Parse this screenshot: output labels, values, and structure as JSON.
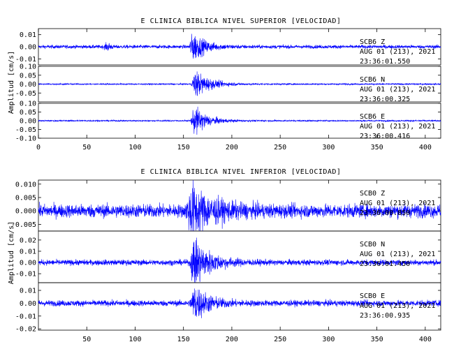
{
  "chart_data": [
    {
      "type": "line",
      "title": "E CLINICA BIBLICA NIVEL SUPERIOR [VELOCIDAD]",
      "ylabel": "Amplitud [cm/s]",
      "xlabel": "",
      "xlim": [
        0,
        416
      ],
      "x_ticks": [
        "0",
        "50",
        "100",
        "150",
        "200",
        "250",
        "300",
        "350",
        "400"
      ],
      "series_color": "#0000ff",
      "panels": [
        {
          "name": "SCB6 Z",
          "station_label": "SCB6   Z",
          "date_label": "AUG 01 (213), 2021",
          "time_label": "23:36:01.550",
          "ylim": [
            -0.015,
            0.015
          ],
          "y_ticks": [
            "0.01",
            "0.00",
            "-0.01"
          ],
          "noise": 0.0007,
          "event_peak": 0.013,
          "event_onset": 155,
          "event_peak_time": 160,
          "event_decay": 12,
          "small_events": [
            [
              72,
              0.003
            ]
          ]
        },
        {
          "name": "SCB6 N",
          "station_label": "SCB6   N",
          "date_label": "AUG 01 (213), 2021",
          "time_label": "23:36:00.325",
          "ylim": [
            -0.1,
            0.1
          ],
          "y_ticks": [
            "0.10",
            "0.05",
            "0.00",
            "-0.05"
          ],
          "noise": 0.002,
          "event_peak": 0.085,
          "event_onset": 158,
          "event_peak_time": 162,
          "event_decay": 15,
          "small_events": []
        },
        {
          "name": "SCB6 E",
          "station_label": "SCB6   E",
          "date_label": "AUG 01 (213), 2021",
          "time_label": "23:36:00.416",
          "ylim": [
            -0.1,
            0.1
          ],
          "y_ticks": [
            "0.10",
            "0.05",
            "0.00",
            "-0.05",
            "-0.10"
          ],
          "noise": 0.002,
          "event_peak": 0.09,
          "event_onset": 157,
          "event_peak_time": 162,
          "event_decay": 13,
          "small_events": []
        }
      ]
    },
    {
      "type": "line",
      "title": "E CLINICA BIBLICA NIVEL INFERIOR [VELOCIDAD]",
      "ylabel": "Amplitud [cm/s]",
      "xlabel": "",
      "xlim": [
        0,
        416
      ],
      "x_ticks": [
        "50",
        "100",
        "150",
        "200",
        "250",
        "300",
        "350",
        "400"
      ],
      "series_color": "#0000ff",
      "panels": [
        {
          "name": "SCB0 Z",
          "station_label": "SCB0   Z",
          "date_label": "AUG 01 (213), 2021",
          "time_label": "23:36:00.850",
          "ylim": [
            -0.0075,
            0.0115
          ],
          "y_ticks": [
            "0.010",
            "0.005",
            "0.000",
            "-0.005"
          ],
          "noise": 0.0012,
          "event_peak": 0.0095,
          "event_onset": 152,
          "event_peak_time": 158,
          "event_decay": 22,
          "small_events": []
        },
        {
          "name": "SCB0 N",
          "station_label": "SCB0   N",
          "date_label": "AUG 01 (213), 2021",
          "time_label": "23:36:01.450",
          "ylim": [
            -0.018,
            0.028
          ],
          "y_ticks": [
            "0.02",
            "0.01",
            "0.00",
            "-0.01"
          ],
          "noise": 0.0012,
          "event_peak": 0.024,
          "event_onset": 156,
          "event_peak_time": 161,
          "event_decay": 16,
          "small_events": []
        },
        {
          "name": "SCB0 E",
          "station_label": "SCB0   E",
          "date_label": "AUG 01 (213), 2021",
          "time_label": "23:36:00.935",
          "ylim": [
            -0.021,
            0.016
          ],
          "y_ticks": [
            "0.01",
            "0.00",
            "-0.01",
            "-0.02"
          ],
          "noise": 0.0011,
          "event_peak": 0.015,
          "event_onset": 156,
          "event_peak_time": 162,
          "event_decay": 14,
          "small_events": []
        }
      ]
    }
  ]
}
